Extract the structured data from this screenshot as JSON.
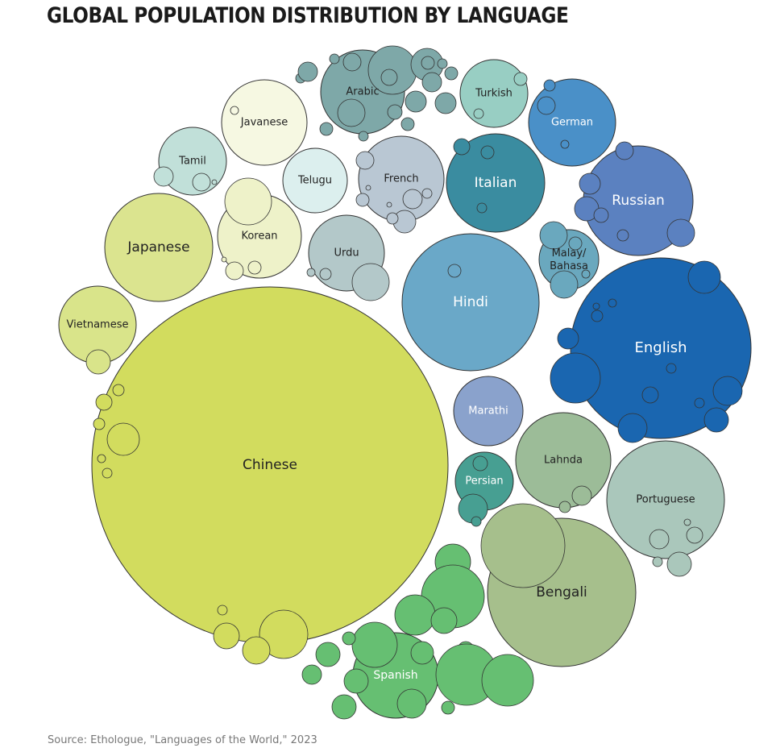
{
  "colors": {
    "title": "#1a1a1a",
    "source": "#777777",
    "stroke": "#333333"
  },
  "chart_data": {
    "type": "bubble",
    "title": "GLOBAL POPULATION DISTRIBUTION BY LANGUAGE",
    "source": "Source: Ethologue, \"Languages of the World,\" 2023",
    "languages": [
      {
        "name": "Chinese",
        "color": "#d2dc5e",
        "text_color": "#222222"
      },
      {
        "name": "English",
        "color": "#1a66b0",
        "text_color": "#ffffff"
      },
      {
        "name": "Hindi",
        "color": "#6aa8c8",
        "text_color": "#ffffff"
      },
      {
        "name": "Spanish",
        "color": "#66bf72",
        "text_color": "#ffffff"
      },
      {
        "name": "Bengali",
        "color": "#a6bf8c",
        "text_color": "#222222"
      },
      {
        "name": "Portuguese",
        "color": "#aac7bb",
        "text_color": "#222222"
      },
      {
        "name": "Russian",
        "color": "#5b81c0",
        "text_color": "#ffffff"
      },
      {
        "name": "Arabic",
        "color": "#7ea8a8",
        "text_color": "#222222"
      },
      {
        "name": "Japanese",
        "color": "#dbe48f",
        "text_color": "#222222"
      },
      {
        "name": "Italian",
        "color": "#3a8ca0",
        "text_color": "#ffffff"
      },
      {
        "name": "French",
        "color": "#b9c7d3",
        "text_color": "#222222"
      },
      {
        "name": "German",
        "color": "#4a90c8",
        "text_color": "#ffffff"
      },
      {
        "name": "Lahnda",
        "color": "#9cbc98",
        "text_color": "#222222"
      },
      {
        "name": "Korean",
        "color": "#eef2c9",
        "text_color": "#222222"
      },
      {
        "name": "Urdu",
        "color": "#b3c8c9",
        "text_color": "#222222"
      },
      {
        "name": "Javanese",
        "color": "#f6f8e2",
        "text_color": "#222222"
      },
      {
        "name": "Vietnamese",
        "color": "#d9e48a",
        "text_color": "#222222"
      },
      {
        "name": "Tamil",
        "color": "#c1e0d9",
        "text_color": "#222222"
      },
      {
        "name": "Telugu",
        "color": "#dcefee",
        "text_color": "#222222"
      },
      {
        "name": "Turkish",
        "color": "#98cec3",
        "text_color": "#222222"
      },
      {
        "name": "Malay/ Bahasa",
        "color": "#6aa8be",
        "text_color": "#222222"
      },
      {
        "name": "Marathi",
        "color": "#8aa2cc",
        "text_color": "#ffffff"
      },
      {
        "name": "Persian",
        "color": "#479f92",
        "text_color": "#ffffff"
      }
    ]
  }
}
